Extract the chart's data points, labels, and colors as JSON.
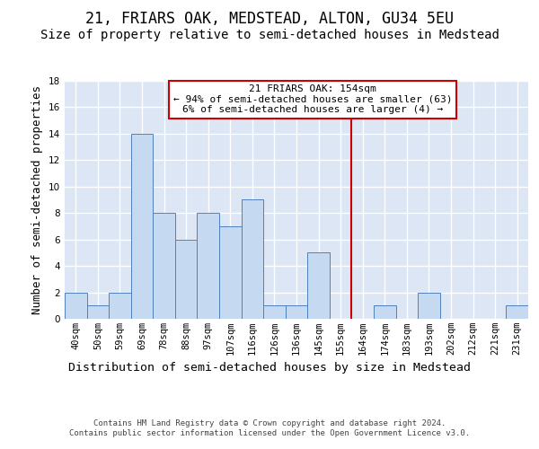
{
  "title": "21, FRIARS OAK, MEDSTEAD, ALTON, GU34 5EU",
  "subtitle": "Size of property relative to semi-detached houses in Medstead",
  "xlabel": "Distribution of semi-detached houses by size in Medstead",
  "ylabel": "Number of semi-detached properties",
  "categories": [
    "40sqm",
    "50sqm",
    "59sqm",
    "69sqm",
    "78sqm",
    "88sqm",
    "97sqm",
    "107sqm",
    "116sqm",
    "126sqm",
    "136sqm",
    "145sqm",
    "155sqm",
    "164sqm",
    "174sqm",
    "183sqm",
    "193sqm",
    "202sqm",
    "212sqm",
    "221sqm",
    "231sqm"
  ],
  "values": [
    2,
    1,
    2,
    14,
    8,
    6,
    8,
    7,
    9,
    1,
    1,
    5,
    0,
    0,
    1,
    0,
    2,
    0,
    0,
    0,
    1
  ],
  "bar_color": "#c5d9f1",
  "bar_edge_color": "#4f81bd",
  "vline_x_index": 12,
  "vline_color": "#cc0000",
  "annotation_text": "21 FRIARS OAK: 154sqm\n← 94% of semi-detached houses are smaller (63)\n6% of semi-detached houses are larger (4) →",
  "annotation_box_color": "#cc0000",
  "ylim": [
    0,
    18
  ],
  "yticks": [
    0,
    2,
    4,
    6,
    8,
    10,
    12,
    14,
    16,
    18
  ],
  "footer": "Contains HM Land Registry data © Crown copyright and database right 2024.\nContains public sector information licensed under the Open Government Licence v3.0.",
  "background_color": "#ffffff",
  "plot_bg_color": "#dce6f5",
  "grid_color": "#ffffff",
  "title_fontsize": 12,
  "subtitle_fontsize": 10,
  "axis_label_fontsize": 9,
  "tick_fontsize": 7.5,
  "annotation_fontsize": 8,
  "footer_fontsize": 6.5
}
